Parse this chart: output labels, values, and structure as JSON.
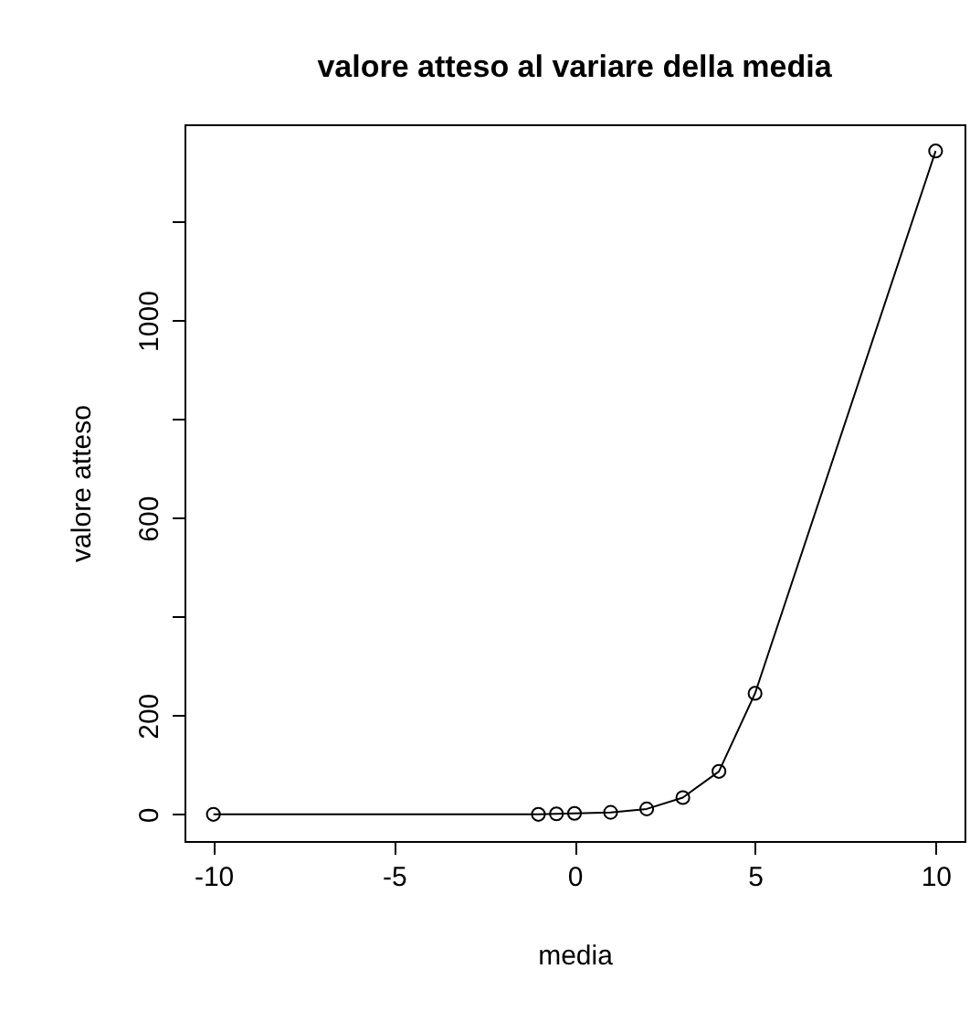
{
  "chart_data": {
    "type": "line",
    "title": "valore atteso al variare della media",
    "xlabel": "media",
    "ylabel": "valore atteso",
    "x": [
      -10,
      -1,
      -0.5,
      0,
      1,
      2,
      3,
      4,
      5,
      10
    ],
    "series": [
      {
        "color": "#000000",
        "values": [
          0,
          0,
          1,
          2,
          4,
          11,
          34,
          87,
          245,
          1343
        ]
      }
    ],
    "xlim": [
      -10.8,
      10.8
    ],
    "xticks": [
      -10,
      -5,
      0,
      5,
      10
    ],
    "ylim": [
      -54,
      1397
    ],
    "yticks": [
      0,
      200,
      {
        "value": 400,
        "label": null
      },
      600,
      {
        "value": 800,
        "label": null
      },
      1000,
      {
        "value": 1200,
        "label": null
      }
    ],
    "grid": false,
    "marker": "circle",
    "line_style": "solid"
  }
}
